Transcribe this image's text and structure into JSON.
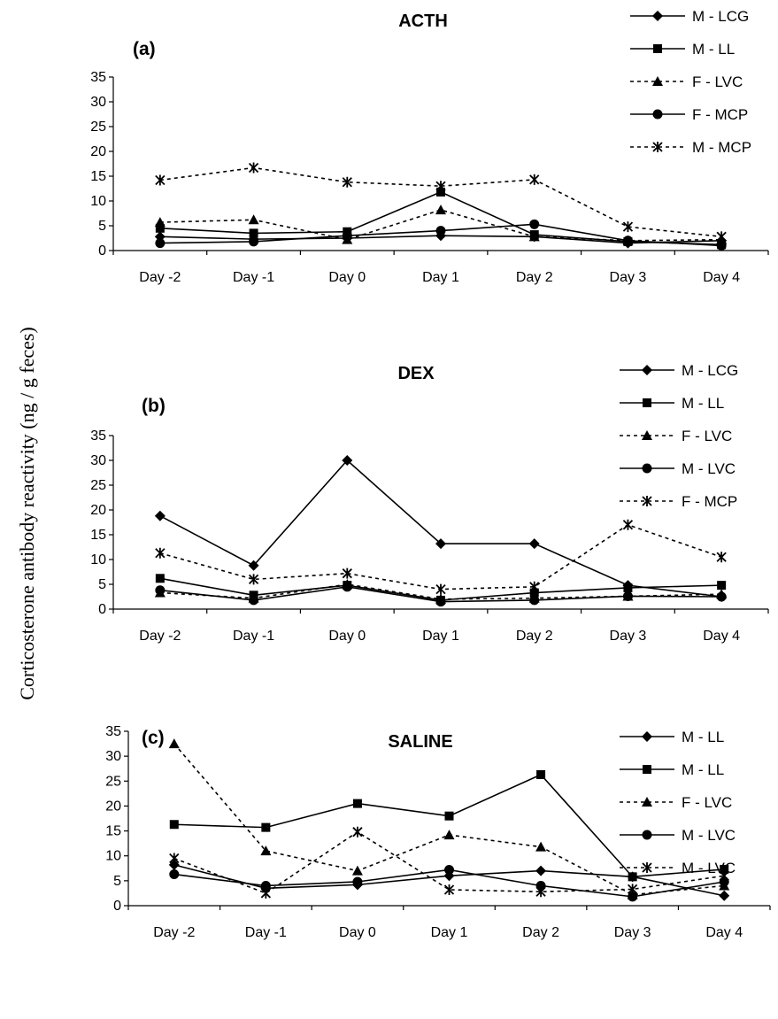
{
  "y_axis_label": "Corticosterone antibody reactivity (ng / g feces)",
  "chart_data": [
    {
      "type": "line",
      "panel_label": "(a)",
      "title": "ACTH",
      "categories": [
        "Day -2",
        "Day -1",
        "Day 0",
        "Day 1",
        "Day 2",
        "Day 3",
        "Day 4"
      ],
      "yticks": [
        0,
        5,
        10,
        15,
        20,
        25,
        30,
        35
      ],
      "ylim": [
        0,
        35
      ],
      "grid": false,
      "legend_position": "top-right",
      "series": [
        {
          "name": "M - LCG",
          "marker": "diamond",
          "dash": "solid",
          "values": [
            2.8,
            2.3,
            2.5,
            3.0,
            2.8,
            1.5,
            2.0
          ]
        },
        {
          "name": "M - LL",
          "marker": "square",
          "dash": "solid",
          "values": [
            4.5,
            3.5,
            3.8,
            11.8,
            3.2,
            1.8,
            1.2
          ]
        },
        {
          "name": "F - LVC",
          "marker": "triangle",
          "dash": "dotted",
          "values": [
            5.7,
            6.2,
            2.2,
            8.2,
            2.8,
            2.0,
            2.2
          ]
        },
        {
          "name": "F - MCP",
          "marker": "circle",
          "dash": "solid",
          "values": [
            1.5,
            1.8,
            3.0,
            4.0,
            5.3,
            2.0,
            1.0
          ]
        },
        {
          "name": "M - MCP",
          "marker": "star",
          "dash": "dotted",
          "values": [
            14.2,
            16.7,
            13.8,
            13.0,
            14.3,
            4.8,
            2.8
          ]
        }
      ]
    },
    {
      "type": "line",
      "panel_label": "(b)",
      "title": "DEX",
      "categories": [
        "Day -2",
        "Day -1",
        "Day 0",
        "Day 1",
        "Day 2",
        "Day 3",
        "Day 4"
      ],
      "yticks": [
        0,
        5,
        10,
        15,
        20,
        25,
        30,
        35
      ],
      "ylim": [
        0,
        35
      ],
      "grid": false,
      "legend_position": "top-right",
      "series": [
        {
          "name": "M - LCG",
          "marker": "diamond",
          "dash": "solid",
          "values": [
            18.8,
            8.8,
            30.0,
            13.2,
            13.2,
            4.8,
            2.5
          ]
        },
        {
          "name": "M - LL",
          "marker": "square",
          "dash": "solid",
          "values": [
            6.2,
            2.8,
            4.8,
            1.8,
            3.3,
            4.3,
            4.8
          ]
        },
        {
          "name": "F - LVC",
          "marker": "triangle",
          "dash": "dotted",
          "values": [
            3.3,
            2.2,
            5.0,
            2.0,
            2.2,
            2.6,
            3.0
          ]
        },
        {
          "name": "M - LVC",
          "marker": "circle",
          "dash": "solid",
          "values": [
            3.8,
            1.8,
            4.5,
            1.5,
            1.8,
            2.6,
            2.5
          ]
        },
        {
          "name": "F - MCP",
          "marker": "star",
          "dash": "dotted",
          "values": [
            11.3,
            6.0,
            7.2,
            4.0,
            4.5,
            17.0,
            10.5
          ]
        }
      ]
    },
    {
      "type": "line",
      "panel_label": "(c)",
      "title": "SALINE",
      "categories": [
        "Day -2",
        "Day -1",
        "Day 0",
        "Day 1",
        "Day 2",
        "Day 3",
        "Day 4"
      ],
      "yticks": [
        0,
        5,
        10,
        15,
        20,
        25,
        30,
        35
      ],
      "ylim": [
        0,
        35
      ],
      "grid": false,
      "legend_position": "top-right",
      "series": [
        {
          "name": "M - LL",
          "marker": "diamond",
          "dash": "solid",
          "values": [
            8.2,
            3.5,
            4.2,
            6.0,
            7.0,
            5.8,
            2.0
          ]
        },
        {
          "name": "M - LL",
          "marker": "square",
          "dash": "solid",
          "values": [
            16.3,
            15.7,
            20.5,
            18.0,
            26.3,
            5.8,
            7.3
          ]
        },
        {
          "name": "F - LVC",
          "marker": "triangle",
          "dash": "dotted",
          "values": [
            32.5,
            11.0,
            7.0,
            14.2,
            11.8,
            2.2,
            4.0
          ]
        },
        {
          "name": "M - LVC",
          "marker": "circle",
          "dash": "solid",
          "values": [
            6.3,
            4.0,
            4.8,
            7.2,
            4.0,
            1.8,
            4.8
          ]
        },
        {
          "name": "M - LVC",
          "marker": "star",
          "dash": "dotted",
          "values": [
            9.5,
            2.5,
            14.8,
            3.2,
            2.8,
            3.3,
            6.0
          ]
        }
      ]
    }
  ]
}
